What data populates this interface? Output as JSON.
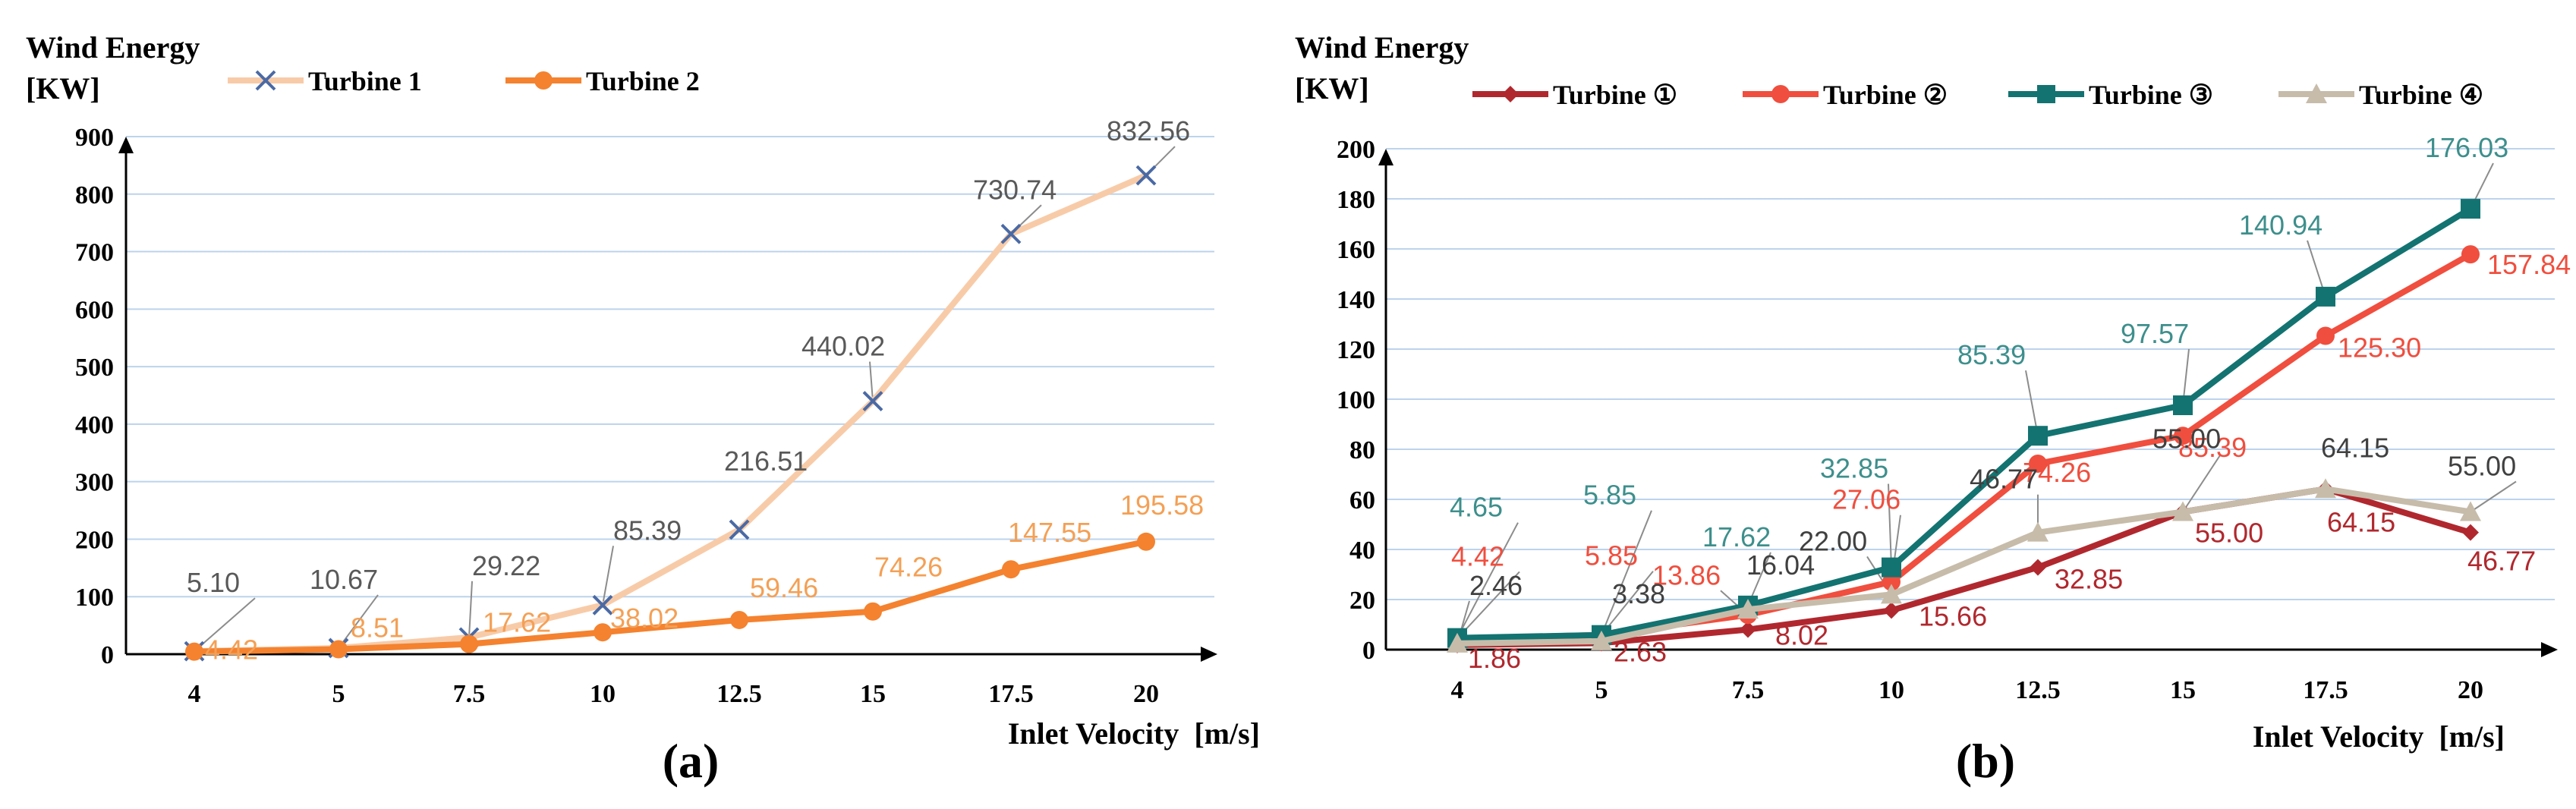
{
  "panels": [
    "(a)",
    "(b)"
  ],
  "chart_data": [
    {
      "type": "line",
      "panel": "(a)",
      "ylabel": "Wind Energy\n[KW]",
      "ylabel_lines": [
        "Wind Energy",
        "[KW]"
      ],
      "xlabel": "Inlet Velocity  [m/s]",
      "categories": [
        "4",
        "5",
        "7.5",
        "10",
        "12.5",
        "15",
        "17.5",
        "20"
      ],
      "ylim": [
        0,
        900
      ],
      "yticks": [
        0,
        100,
        200,
        300,
        400,
        500,
        600,
        700,
        800,
        900
      ],
      "legend_position": "top-left",
      "series": [
        {
          "name": "Turbine 1",
          "color": "#f8cba8",
          "label_color": "#595959",
          "marker": "x",
          "marker_color": "#4a6aa5",
          "values": [
            5.1,
            10.67,
            29.22,
            85.39,
            216.51,
            440.02,
            730.74,
            832.56
          ],
          "labels": [
            "5.10",
            "10.67",
            "29.22",
            "85.39",
            "216.51",
            "440.02",
            "730.74",
            "832.56"
          ]
        },
        {
          "name": "Turbine 2",
          "color": "#f4822f",
          "label_color": "#f4a055",
          "marker": "circle",
          "marker_color": "#f4822f",
          "values": [
            4.42,
            8.51,
            17.62,
            38.02,
            59.46,
            74.26,
            147.55,
            195.58
          ],
          "labels": [
            "4.42",
            "8.51",
            "17.62",
            "38.02",
            "59.46",
            "74.26",
            "147.55",
            "195.58"
          ]
        }
      ]
    },
    {
      "type": "line",
      "panel": "(b)",
      "ylabel": "Wind Energy\n[KW]",
      "ylabel_lines": [
        "Wind Energy",
        "[KW]"
      ],
      "xlabel": "Inlet Velocity  [m/s]",
      "categories": [
        "4",
        "5",
        "7.5",
        "10",
        "12.5",
        "15",
        "17.5",
        "20"
      ],
      "ylim": [
        0,
        200
      ],
      "yticks": [
        0,
        20,
        40,
        60,
        80,
        100,
        120,
        140,
        160,
        180,
        200
      ],
      "legend_position": "top",
      "series": [
        {
          "name": "Turbine ①",
          "color": "#b0282e",
          "label_color": "#b0282e",
          "marker": "diamond",
          "values": [
            1.86,
            2.63,
            8.02,
            15.66,
            32.85,
            55.0,
            64.15,
            46.77
          ],
          "labels": [
            "1.86",
            "2.63",
            "8.02",
            "15.66",
            "32.85",
            "55.00",
            "64.15",
            "46.77"
          ]
        },
        {
          "name": "Turbine ②",
          "color": "#f04e3e",
          "label_color": "#f04e3e",
          "marker": "circle",
          "values": [
            4.42,
            5.85,
            13.86,
            27.06,
            74.26,
            85.39,
            125.3,
            157.84
          ],
          "labels": [
            "4.42",
            "5.85",
            "13.86",
            "27.06",
            "74.26",
            "85.39",
            "125.30",
            "157.84"
          ]
        },
        {
          "name": "Turbine ③",
          "color": "#137371",
          "label_color": "#3d8f8c",
          "marker": "square",
          "values": [
            4.65,
            5.85,
            17.62,
            32.85,
            85.39,
            97.57,
            140.94,
            176.03
          ],
          "labels": [
            "4.65",
            "5.85",
            "17.62",
            "32.85",
            "85.39",
            "97.57",
            "140.94",
            "176.03"
          ]
        },
        {
          "name": "Turbine ④",
          "color": "#c7bcaa",
          "label_color": "#404040",
          "marker": "triangle",
          "values": [
            2.46,
            3.38,
            16.04,
            22.0,
            46.77,
            55.0,
            64.15,
            55.0
          ],
          "labels": [
            "2.46",
            "3.38",
            "16.04",
            "22.00",
            "46.77",
            "55.00",
            "64.15",
            "55.00"
          ]
        }
      ]
    }
  ]
}
